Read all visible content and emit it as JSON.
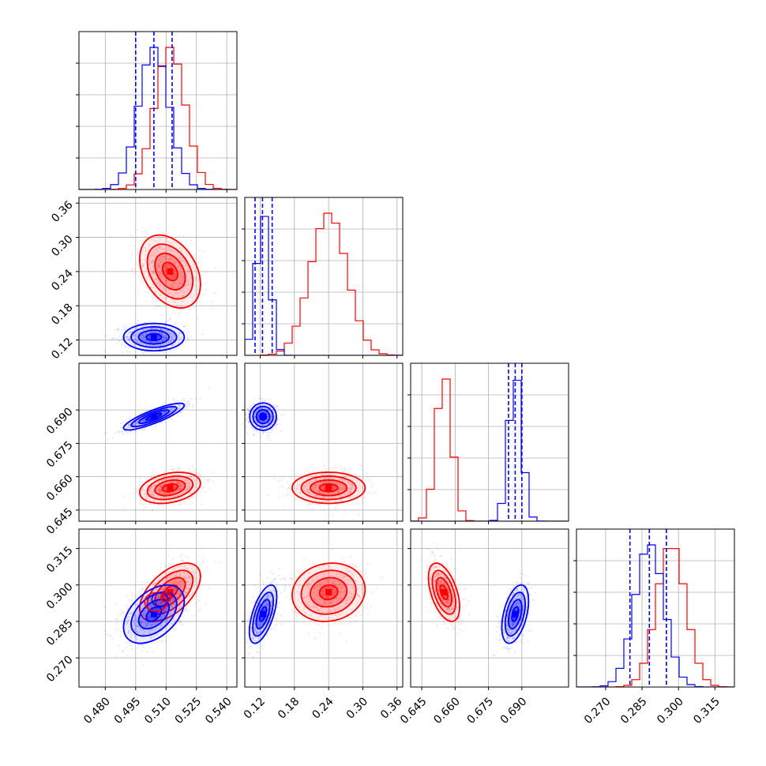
{
  "chart_data": {
    "type": "corner",
    "title": "",
    "parameters": [
      "",
      "",
      "",
      ""
    ],
    "colors": {
      "series_a": "#ff0000",
      "series_b": "#0000ff",
      "grid": "#b0b0b0",
      "frame": "#000000"
    },
    "grid": true,
    "legend": "none",
    "ranges": [
      [
        0.467,
        0.545
      ],
      [
        0.093,
        0.37
      ],
      [
        0.64,
        0.711
      ],
      [
        0.258,
        0.323
      ]
    ],
    "axis_ticks": [
      {
        "values": [
          0.48,
          0.495,
          0.51,
          0.525,
          0.54
        ],
        "labels": [
          "0.480",
          "0.495",
          "0.510",
          "0.525",
          "0.540"
        ]
      },
      {
        "values": [
          0.12,
          0.18,
          0.24,
          0.3,
          0.36
        ],
        "labels": [
          "0.12",
          "0.18",
          "0.24",
          "0.30",
          "0.36"
        ]
      },
      {
        "values": [
          0.645,
          0.66,
          0.675,
          0.69
        ],
        "labels": [
          "0.645",
          "0.660",
          "0.675",
          "0.690"
        ]
      },
      {
        "values": [
          0.27,
          0.285,
          0.3,
          0.315
        ],
        "labels": [
          "0.270",
          "0.285",
          "0.300",
          "0.315"
        ]
      }
    ],
    "series": [
      {
        "color": "#ff0000",
        "mean": [
          0.512,
          0.24,
          0.655,
          0.297
        ],
        "sd": [
          0.0075,
          0.032,
          0.0035,
          0.006
        ],
        "corr": [
          [
            1,
            -0.35,
            0.3,
            0.55
          ],
          [
            -0.35,
            1,
            0.0,
            0.1
          ],
          [
            0.3,
            0.0,
            1,
            -0.5
          ],
          [
            0.55,
            0.1,
            -0.5,
            1
          ]
        ],
        "quantiles": null
      },
      {
        "color": "#0000ff",
        "mean": [
          0.504,
          0.125,
          0.687,
          0.288
        ],
        "sd": [
          0.0075,
          0.012,
          0.003,
          0.006
        ],
        "corr": [
          [
            1,
            0.0,
            0.85,
            0.45
          ],
          [
            0.0,
            1,
            0.0,
            0.6
          ],
          [
            0.85,
            0.0,
            1,
            0.45
          ],
          [
            0.45,
            0.6,
            0.45,
            1
          ]
        ],
        "quantiles": [
          [
            0.495,
            0.504,
            0.513
          ],
          [
            0.111,
            0.124,
            0.141
          ],
          [
            0.684,
            0.687,
            0.69
          ],
          [
            0.28,
            0.288,
            0.295
          ]
        ]
      }
    ],
    "overlay_contours": [
      {
        "x": 0.505,
        "y": 0.293,
        "rx": 0.0055,
        "ry": 0.0038
      },
      {
        "x": 0.507,
        "y": 0.294,
        "rx": 0.004,
        "ry": 0.0028
      },
      {
        "x": 0.51,
        "y": 0.295,
        "rx": 0.0025,
        "ry": 0.002
      }
    ],
    "contour_levels_sigma": [
      0.5,
      1.0,
      1.5,
      2.0
    ]
  }
}
